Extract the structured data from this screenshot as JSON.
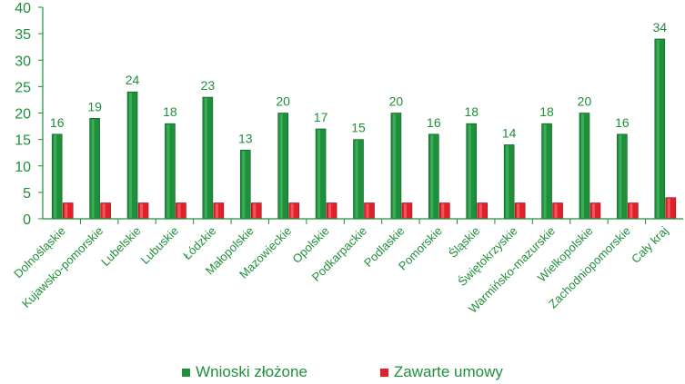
{
  "chart_data": {
    "type": "bar",
    "categories": [
      "Dolnośląskie",
      "Kujawsko-pomorskie",
      "Lubelskie",
      "Lubuskie",
      "Łódzkie",
      "Małopolskie",
      "Mazowieckie",
      "Opolskie",
      "Podkarpackie",
      "Podlaskie",
      "Pomorskie",
      "Śląskie",
      "Świętokrzyskie",
      "Warmińsko-mazurskie",
      "Wielkopolskie",
      "Zachodniopomorskie",
      "Cały kraj"
    ],
    "series": [
      {
        "name": "Wnioski złożone",
        "values": [
          16,
          19,
          24,
          18,
          23,
          13,
          20,
          17,
          15,
          20,
          16,
          18,
          14,
          18,
          20,
          16,
          34
        ],
        "color": "#1e8f3a"
      },
      {
        "name": "Zawarte umowy",
        "values": [
          3,
          3,
          3,
          3,
          3,
          3,
          3,
          3,
          3,
          3,
          3,
          3,
          3,
          3,
          3,
          3,
          4
        ],
        "color": "#e0202a"
      }
    ],
    "ylim": [
      0,
      40
    ],
    "yticks": [
      0,
      5,
      10,
      15,
      20,
      25,
      30,
      35,
      40
    ],
    "data_labels_series": "Wnioski złożone",
    "legend_position": "bottom",
    "grid": false,
    "axis_color": "#1e8f3a"
  }
}
